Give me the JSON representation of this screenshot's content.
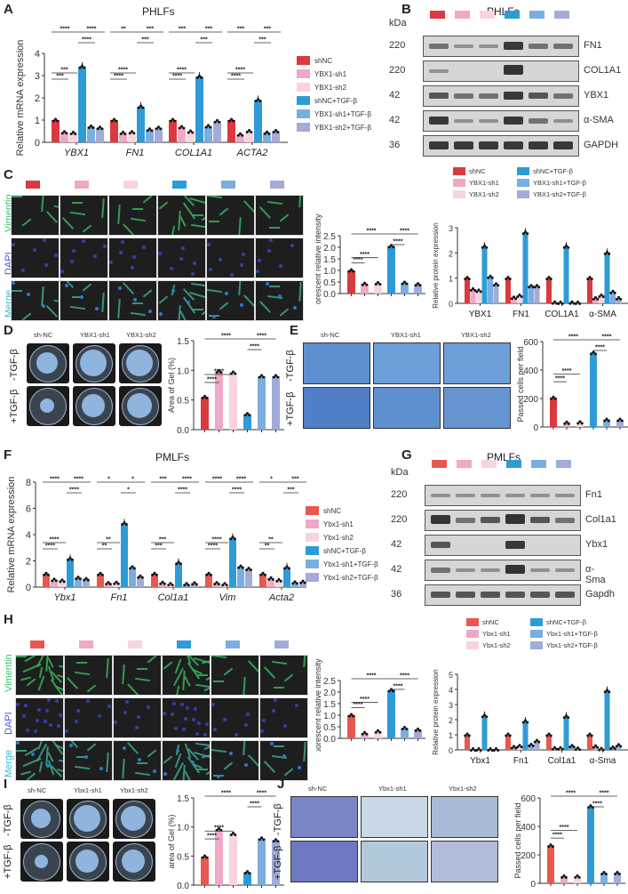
{
  "colors": {
    "shNC": "#d93a40",
    "sh1": "#eea9c6",
    "sh2": "#f8d3e0",
    "tgf": "#2f9bd6",
    "sh1tgf": "#7aaee0",
    "sh2tgf": "#a3abd8",
    "shNC_mouse": "#e8584f"
  },
  "panelA": {
    "letter": "A",
    "title": "PHLFs",
    "ylabel": "Relative mRNA expression",
    "yticks": [
      "0",
      "1",
      "2",
      "3",
      "4"
    ]
  },
  "panelB": {
    "letter": "B",
    "title": "PHLFs",
    "kda_label": "kDa",
    "rows": [
      {
        "kda": "220",
        "protein": "FN1"
      },
      {
        "kda": "220",
        "protein": "COL1A1"
      },
      {
        "kda": "42",
        "protein": "YBX1"
      },
      {
        "kda": "42",
        "protein": "α-SMA"
      },
      {
        "kda": "36",
        "protein": "GAPDH"
      }
    ]
  },
  "panelC": {
    "letter": "C",
    "rows": [
      "Vimentin",
      "DAPI",
      "Merge"
    ],
    "fluor_ylabel": "Fluorescent relative intensity",
    "fluor_yticks": [
      "0.0",
      "0.5",
      "1.0",
      "1.5",
      "2.0",
      "2.5"
    ],
    "prot_ylabel": "Relative protein expression",
    "prot_yticks": [
      "0",
      "1",
      "2",
      "3"
    ]
  },
  "panelD": {
    "letter": "D",
    "cols": [
      "sh-NC",
      "YBX1-sh1",
      "YBX1-sh2"
    ],
    "rows": [
      "-TGF-β",
      "+TGF-β"
    ],
    "ylabel": "Area of Gel (%)",
    "yticks": [
      "0.0",
      "0.5",
      "1.0",
      "1.5"
    ]
  },
  "panelE": {
    "letter": "E",
    "cols": [
      "sh-NC",
      "YBX1-sh1",
      "YBX1-sh2"
    ],
    "rows": [
      "-TGF-β",
      "+TGF-β"
    ],
    "ylabel": "Passed cells per field",
    "yticks": [
      "0",
      "200",
      "400",
      "600"
    ]
  },
  "panelF": {
    "letter": "F",
    "title": "PMLFs",
    "ylabel": "Relative mRNA expression",
    "yticks": [
      "0",
      "2",
      "4",
      "6",
      "8"
    ]
  },
  "panelG": {
    "letter": "G",
    "title": "PMLFs",
    "kda_label": "kDa",
    "rows": [
      {
        "kda": "220",
        "protein": "Fn1"
      },
      {
        "kda": "220",
        "protein": "Col1a1"
      },
      {
        "kda": "42",
        "protein": "Ybx1"
      },
      {
        "kda": "42",
        "protein": "α-Sma"
      },
      {
        "kda": "36",
        "protein": "Gapdh"
      }
    ]
  },
  "panelH": {
    "letter": "H",
    "rows": [
      "Vimentin",
      "DAPI",
      "Merge"
    ],
    "fluor_ylabel": "Fluorescent relative intensity",
    "fluor_yticks": [
      "0.0",
      "0.5",
      "1.0",
      "1.5",
      "2.0",
      "2.5"
    ],
    "prot_ylabel": "Relative protein expression",
    "prot_yticks": [
      "0",
      "1",
      "2",
      "3",
      "4",
      "5"
    ]
  },
  "panelI": {
    "letter": "I",
    "cols": [
      "sh-NC",
      "Ybx1-sh1",
      "Ybx1-sh2"
    ],
    "rows": [
      "-TGF-β",
      "+TGF-β"
    ],
    "ylabel": "area of Gel (%)",
    "yticks": [
      "0.0",
      "0.5",
      "1.0",
      "1.5"
    ]
  },
  "panelJ": {
    "letter": "J",
    "cols": [
      "sh-NC",
      "Ybx1-sh1",
      "Ybx1-sh2"
    ],
    "rows": [
      "-TGF-β",
      "+TGF-β"
    ],
    "ylabel": "Passed cells per field",
    "yticks": [
      "0",
      "200",
      "400",
      "600"
    ]
  },
  "legend_human": [
    "shNC",
    "YBX1-sh1",
    "YBX1-sh2",
    "shNC+TGF-β",
    "YBX1-sh1+TGF-β",
    "YBX1-sh2+TGF-β"
  ],
  "legend_mouse": [
    "shNC",
    "Ybx1-sh1",
    "Ybx1-sh2",
    "shNC+TGF-β",
    "Ybx1-sh1+TGF-β",
    "Ybx1-sh2+TGF-β"
  ],
  "chart_data": [
    {
      "id": "A",
      "type": "bar",
      "title": "PHLFs",
      "ylabel": "Relative mRNA expression",
      "ylim": [
        0,
        4
      ],
      "categories": [
        "YBX1",
        "FN1",
        "COL1A1",
        "ACTA2"
      ],
      "series": [
        {
          "name": "shNC",
          "values": [
            1.0,
            1.0,
            1.0,
            1.0
          ]
        },
        {
          "name": "YBX1-sh1",
          "values": [
            0.45,
            0.42,
            0.68,
            0.35
          ]
        },
        {
          "name": "YBX1-sh2",
          "values": [
            0.42,
            0.45,
            0.48,
            0.5
          ]
        },
        {
          "name": "shNC+TGF-β",
          "values": [
            3.4,
            1.6,
            2.95,
            1.9
          ]
        },
        {
          "name": "YBX1-sh1+TGF-β",
          "values": [
            0.7,
            0.57,
            0.72,
            0.43
          ]
        },
        {
          "name": "YBX1-sh2+TGF-β",
          "values": [
            0.65,
            0.65,
            0.95,
            0.5
          ]
        }
      ],
      "significance": {
        "YBX1": [
          "***",
          "***",
          "****",
          "****",
          "****"
        ],
        "FN1": [
          "****",
          "****",
          "**",
          "***",
          "***"
        ],
        "COL1A1": [
          "****",
          "****",
          "***",
          "***",
          "***"
        ],
        "ACTA2": [
          "****",
          "****",
          "***",
          "***",
          "***"
        ]
      }
    },
    {
      "id": "C-fluor",
      "type": "bar",
      "ylabel": "Fluorescent relative intensity",
      "ylim": [
        0,
        2.5
      ],
      "categories": [
        "shNC",
        "YBX1-sh1",
        "YBX1-sh2",
        "shNC+TGF-β",
        "YBX1-sh1+TGF-β",
        "YBX1-sh2+TGF-β"
      ],
      "values": [
        1.0,
        0.42,
        0.44,
        2.05,
        0.46,
        0.4
      ],
      "significance": [
        "****",
        "****",
        "****",
        "****",
        "****"
      ]
    },
    {
      "id": "C-protein",
      "type": "bar",
      "ylabel": "Relative protein expression",
      "ylim": [
        0,
        3
      ],
      "categories": [
        "YBX1",
        "FN1",
        "COL1A1",
        "α-SMA"
      ],
      "series": [
        {
          "name": "shNC",
          "values": [
            1.0,
            1.0,
            1.0,
            1.0
          ]
        },
        {
          "name": "YBX1-sh1",
          "values": [
            0.55,
            0.22,
            0.03,
            0.2
          ]
        },
        {
          "name": "YBX1-sh2",
          "values": [
            0.5,
            0.3,
            0.02,
            0.3
          ]
        },
        {
          "name": "shNC+TGF-β",
          "values": [
            2.25,
            2.8,
            2.25,
            2.0
          ]
        },
        {
          "name": "YBX1-sh1+TGF-β",
          "values": [
            1.05,
            0.68,
            0.03,
            0.45
          ]
        },
        {
          "name": "YBX1-sh2+TGF-β",
          "values": [
            0.75,
            0.68,
            0.02,
            0.2
          ]
        }
      ]
    },
    {
      "id": "D",
      "type": "bar",
      "ylabel": "Area of Gel (%)",
      "ylim": [
        0,
        1.5
      ],
      "categories": [
        "shNC",
        "YBX1-sh1",
        "YBX1-sh2",
        "shNC+TGF-β",
        "YBX1-sh1+TGF-β",
        "YBX1-sh2+TGF-β"
      ],
      "values": [
        0.55,
        0.98,
        0.96,
        0.26,
        0.9,
        0.9
      ],
      "significance": [
        "****",
        "****",
        "****",
        "****",
        "****"
      ]
    },
    {
      "id": "E",
      "type": "bar",
      "ylabel": "Passed cells per field",
      "ylim": [
        0,
        600
      ],
      "categories": [
        "shNC",
        "YBX1-sh1",
        "YBX1-sh2",
        "shNC+TGF-β",
        "YBX1-sh1+TGF-β",
        "YBX1-sh2+TGF-β"
      ],
      "values": [
        205,
        30,
        32,
        520,
        50,
        50
      ],
      "significance": [
        "****",
        "****",
        "****",
        "****",
        "****"
      ]
    },
    {
      "id": "F",
      "type": "bar",
      "title": "PMLFs",
      "ylabel": "Relative mRNA expression",
      "ylim": [
        0,
        8
      ],
      "categories": [
        "Ybx1",
        "Fn1",
        "Col1a1",
        "Vim",
        "Acta2"
      ],
      "series": [
        {
          "name": "shNC",
          "values": [
            1.0,
            1.0,
            1.0,
            1.0,
            1.0
          ]
        },
        {
          "name": "Ybx1-sh1",
          "values": [
            0.55,
            0.3,
            0.32,
            0.3,
            0.65
          ]
        },
        {
          "name": "Ybx1-sh2",
          "values": [
            0.48,
            0.32,
            0.22,
            0.22,
            0.52
          ]
        },
        {
          "name": "shNC+TGF-β",
          "values": [
            2.15,
            4.85,
            1.85,
            3.75,
            1.5
          ]
        },
        {
          "name": "Ybx1-sh1+TGF-β",
          "values": [
            0.7,
            1.5,
            0.22,
            1.55,
            0.35
          ]
        },
        {
          "name": "Ybx1-sh2+TGF-β",
          "values": [
            0.6,
            0.8,
            0.28,
            1.38,
            0.4
          ]
        }
      ],
      "significance": {
        "Ybx1": [
          "****",
          "****",
          "****",
          "****",
          "****"
        ],
        "Fn1": [
          "**",
          "**",
          "*",
          "*",
          "*"
        ],
        "Col1a1": [
          "***",
          "***",
          "***",
          "****",
          "****"
        ],
        "Vim": [
          "****",
          "****",
          "****",
          "****",
          "****"
        ],
        "Acta2": [
          "**",
          "**",
          "*",
          "***",
          "***"
        ]
      }
    },
    {
      "id": "H-fluor",
      "type": "bar",
      "ylabel": "Fluorescent relative intensity",
      "ylim": [
        0,
        2.5
      ],
      "categories": [
        "shNC",
        "Ybx1-sh1",
        "Ybx1-sh2",
        "shNC+TGF-β",
        "Ybx1-sh1+TGF-β",
        "Ybx1-sh2+TGF-β"
      ],
      "values": [
        1.0,
        0.22,
        0.3,
        2.08,
        0.44,
        0.37
      ],
      "significance": [
        "****",
        "****",
        "****",
        "****",
        "****"
      ]
    },
    {
      "id": "H-protein",
      "type": "bar",
      "ylabel": "Relative protein expression",
      "ylim": [
        0,
        5
      ],
      "categories": [
        "Ybx1",
        "Fn1",
        "Col1a1",
        "α-Sma"
      ],
      "series": [
        {
          "name": "shNC",
          "values": [
            1.0,
            1.0,
            1.0,
            1.0
          ]
        },
        {
          "name": "Ybx1-sh1",
          "values": [
            0.03,
            0.18,
            0.1,
            0.22
          ]
        },
        {
          "name": "Ybx1-sh2",
          "values": [
            0.03,
            0.25,
            0.1,
            0.05
          ]
        },
        {
          "name": "shNC+TGF-β",
          "values": [
            2.25,
            1.88,
            2.2,
            3.9
          ]
        },
        {
          "name": "Ybx1-sh1+TGF-β",
          "values": [
            0.03,
            0.32,
            0.25,
            0.15
          ]
        },
        {
          "name": "Ybx1-sh2+TGF-β",
          "values": [
            0.03,
            0.58,
            0.08,
            0.3
          ]
        }
      ]
    },
    {
      "id": "I",
      "type": "bar",
      "ylabel": "area of Gel (%)",
      "ylim": [
        0,
        1.5
      ],
      "categories": [
        "shNC",
        "Ybx1-sh1",
        "Ybx1-sh2",
        "shNC+TGF-β",
        "Ybx1-sh1+TGF-β",
        "Ybx1-sh2+TGF-β"
      ],
      "values": [
        0.49,
        0.96,
        0.88,
        0.22,
        0.8,
        0.77
      ],
      "significance": [
        "****",
        "****",
        "****",
        "****",
        "****"
      ]
    },
    {
      "id": "J",
      "type": "bar",
      "ylabel": "Passed cells per field",
      "ylim": [
        0,
        600
      ],
      "categories": [
        "shNC",
        "Ybx1-sh1",
        "Ybx1-sh2",
        "shNC+TGF-β",
        "Ybx1-sh1+TGF-β",
        "Ybx1-sh2+TGF-β"
      ],
      "values": [
        265,
        48,
        48,
        540,
        72,
        72
      ],
      "significance": [
        "****",
        "****",
        "****",
        "****",
        "****"
      ]
    }
  ]
}
